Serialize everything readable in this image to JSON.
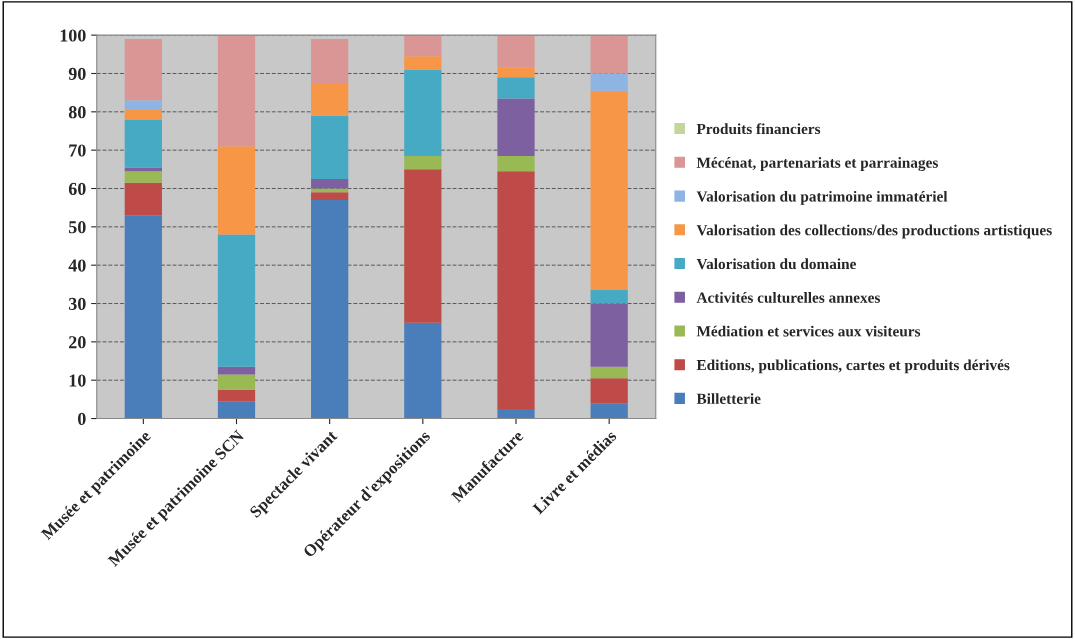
{
  "chart_data": {
    "type": "bar",
    "stacked": true,
    "categories": [
      "Musée et patrimoine",
      "Musée et patrimoine SCN",
      "Spectacle vivant",
      "Opérateur d'expositions",
      "Manufacture",
      "Livre et médias"
    ],
    "series": [
      {
        "name": "Billetterie",
        "color": "#4a7ebb",
        "values": [
          53,
          4.5,
          57,
          25,
          2.5,
          4
        ]
      },
      {
        "name": "Editions, publications, cartes et produits dérivés",
        "color": "#be4b48",
        "values": [
          8.5,
          3,
          2,
          40,
          62,
          6.5
        ]
      },
      {
        "name": "Médiation et services aux visiteurs",
        "color": "#98b954",
        "values": [
          3,
          4,
          1,
          3.5,
          4,
          3
        ]
      },
      {
        "name": "Activités culturelles annexes",
        "color": "#7d60a0",
        "values": [
          1,
          2,
          2.5,
          null,
          15,
          16.5
        ]
      },
      {
        "name": "Valorisation du domaine",
        "color": "#46aac5",
        "values": [
          12.5,
          34.5,
          16.5,
          22.5,
          5.5,
          3.5
        ]
      },
      {
        "name": "Valorisation des collections/des productions artistiques",
        "color": "#f79646",
        "values": [
          2.5,
          23,
          8.5,
          3.5,
          2.5,
          52
        ]
      },
      {
        "name": "Valorisation du patrimoine immatériel",
        "color": "#8eb4e3",
        "values": [
          2.5,
          null,
          null,
          null,
          null,
          4.5
        ]
      },
      {
        "name": "Mécénat, partenariats et parrainages",
        "color": "#d99694",
        "values": [
          16,
          29,
          11.5,
          5.5,
          8.5,
          10
        ]
      },
      {
        "name": "Produits financiers",
        "color": "#c3d69b",
        "values": [
          0,
          0,
          0,
          0,
          0,
          0
        ]
      }
    ],
    "ylim": [
      0,
      100
    ],
    "yticks": [
      0,
      10,
      20,
      30,
      40,
      50,
      60,
      70,
      80,
      90,
      100
    ],
    "grid": "y",
    "legend": "right"
  }
}
